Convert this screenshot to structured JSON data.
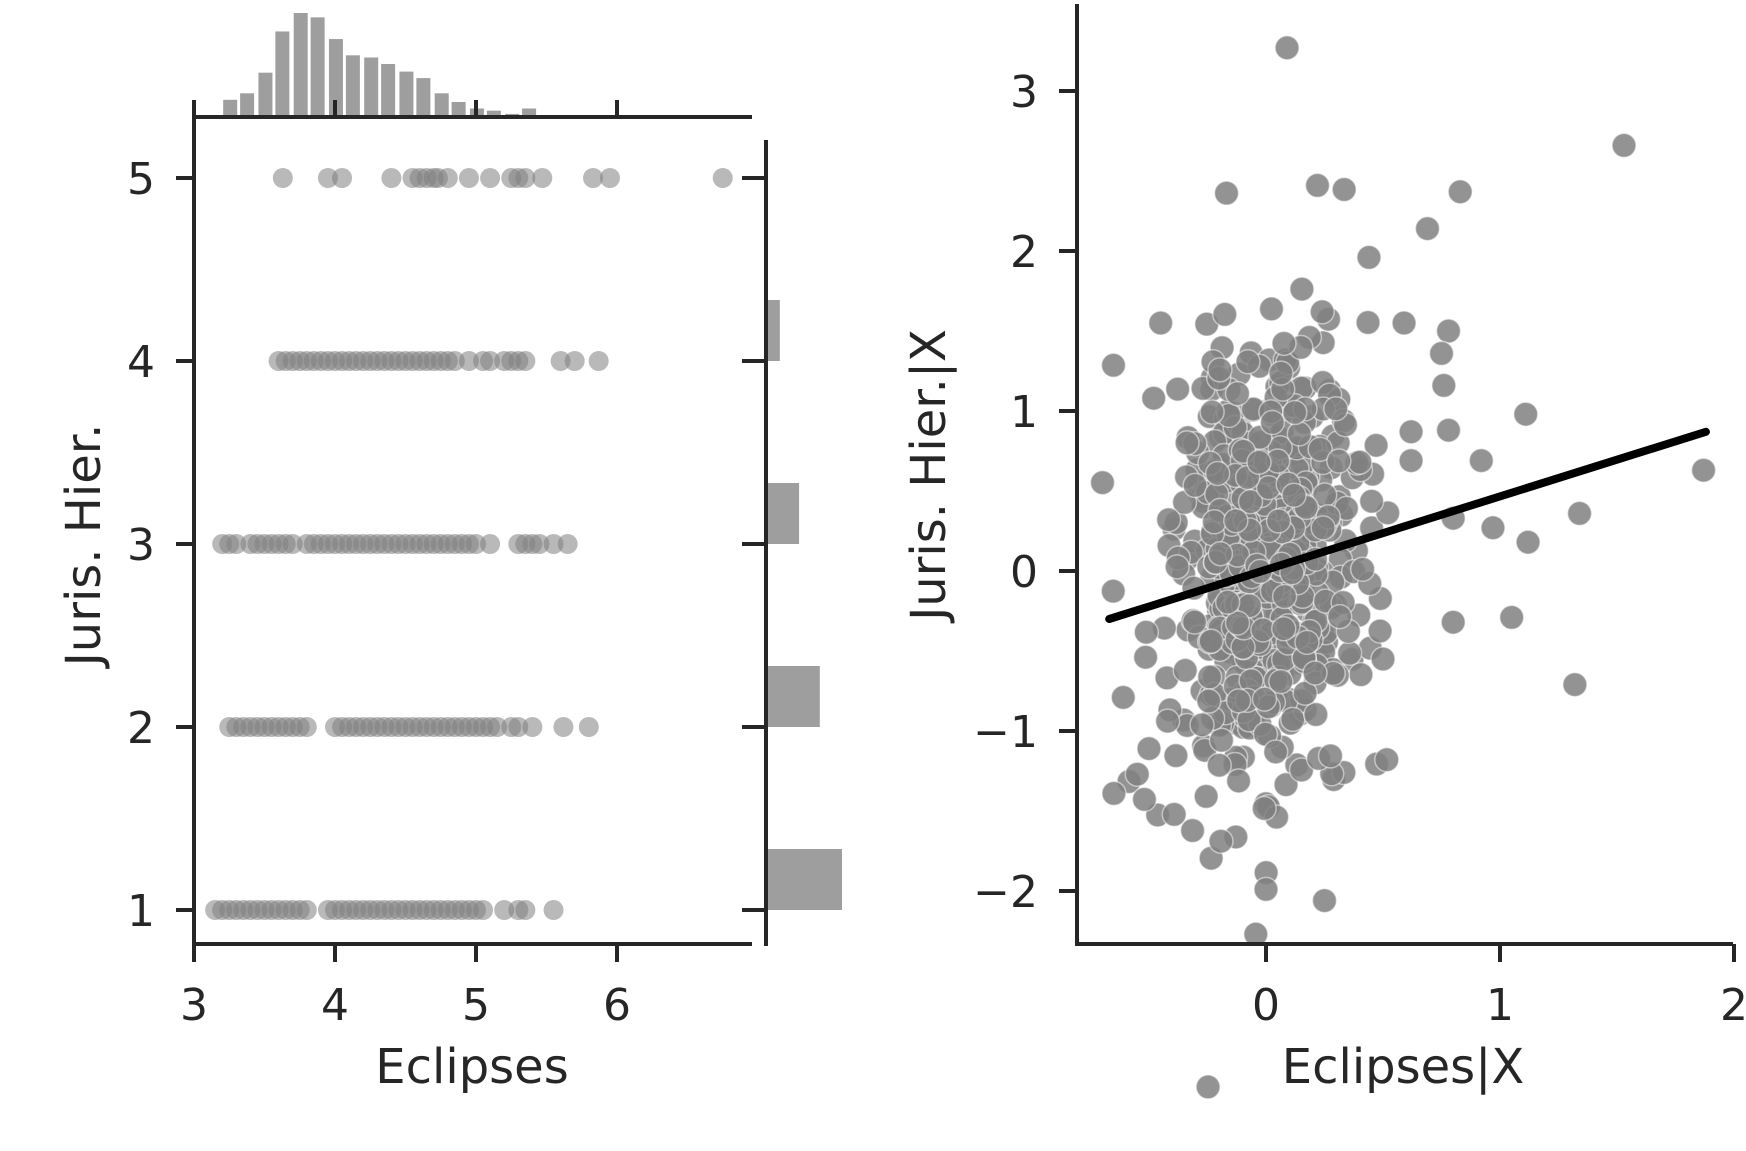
{
  "colors": {
    "axis": "#262626",
    "marker": "#808080",
    "bar": "#9e9e9e",
    "fit_line": "#000000"
  },
  "chart_data": [
    {
      "type": "scatter",
      "panel": "joint-left",
      "xlabel": "Eclipses",
      "ylabel": "Juris. Hier.",
      "xlim": [
        3.0,
        7.0
      ],
      "ylim": [
        0.8,
        5.3
      ],
      "xticks": [
        "3",
        "4",
        "5",
        "6"
      ],
      "yticks": [
        "1",
        "2",
        "3",
        "4",
        "5"
      ],
      "points": [
        {
          "y": 5,
          "x": [
            3.63,
            3.95,
            4.05,
            4.4,
            4.55,
            4.6,
            4.65,
            4.7,
            4.73,
            4.8,
            4.95,
            5.1,
            5.25,
            5.3,
            5.35,
            5.47,
            5.83,
            5.95,
            6.75
          ]
        },
        {
          "y": 4,
          "x": [
            3.6,
            3.65,
            3.7,
            3.75,
            3.8,
            3.85,
            3.9,
            3.95,
            4.0,
            4.05,
            4.1,
            4.15,
            4.2,
            4.25,
            4.3,
            4.35,
            4.4,
            4.45,
            4.5,
            4.55,
            4.6,
            4.65,
            4.7,
            4.75,
            4.8,
            4.85,
            4.95,
            5.05,
            5.1,
            5.2,
            5.25,
            5.3,
            5.35,
            5.6,
            5.7,
            5.87
          ]
        },
        {
          "y": 3,
          "x": [
            3.2,
            3.25,
            3.3,
            3.4,
            3.45,
            3.5,
            3.55,
            3.6,
            3.65,
            3.7,
            3.8,
            3.85,
            3.9,
            3.95,
            4.0,
            4.05,
            4.1,
            4.15,
            4.2,
            4.25,
            4.3,
            4.35,
            4.4,
            4.45,
            4.5,
            4.55,
            4.6,
            4.65,
            4.7,
            4.75,
            4.8,
            4.85,
            4.9,
            4.95,
            5.0,
            5.1,
            5.3,
            5.35,
            5.4,
            5.45,
            5.55,
            5.65
          ]
        },
        {
          "y": 2,
          "x": [
            3.25,
            3.3,
            3.35,
            3.4,
            3.45,
            3.5,
            3.55,
            3.6,
            3.65,
            3.7,
            3.75,
            3.8,
            4.0,
            4.05,
            4.1,
            4.15,
            4.2,
            4.25,
            4.3,
            4.35,
            4.4,
            4.45,
            4.5,
            4.55,
            4.6,
            4.65,
            4.7,
            4.75,
            4.8,
            4.85,
            4.9,
            4.95,
            5.0,
            5.05,
            5.1,
            5.15,
            5.25,
            5.3,
            5.4,
            5.62,
            5.8
          ]
        },
        {
          "y": 1,
          "x": [
            3.15,
            3.2,
            3.25,
            3.3,
            3.35,
            3.4,
            3.45,
            3.5,
            3.55,
            3.6,
            3.65,
            3.7,
            3.75,
            3.8,
            3.95,
            4.0,
            4.05,
            4.1,
            4.15,
            4.2,
            4.25,
            4.3,
            4.35,
            4.4,
            4.45,
            4.5,
            4.55,
            4.6,
            4.65,
            4.7,
            4.75,
            4.8,
            4.85,
            4.9,
            4.95,
            5.0,
            5.05,
            5.2,
            5.3,
            5.35,
            5.55
          ]
        }
      ],
      "marginal_x_hist": {
        "bin_starts": [
          3.2,
          3.32,
          3.45,
          3.57,
          3.7,
          3.82,
          3.95,
          4.07,
          4.2,
          4.32,
          4.45,
          4.57,
          4.7,
          4.82,
          4.95,
          5.07,
          5.2,
          5.32
        ],
        "counts": [
          14,
          20,
          39,
          77,
          94,
          90,
          70,
          55,
          53,
          47,
          40,
          34,
          20,
          12,
          6,
          4,
          1,
          6
        ]
      },
      "marginal_y_hist": {
        "categories": [
          1,
          2,
          3,
          4,
          5
        ],
        "counts": [
          100,
          70,
          42,
          16,
          0
        ]
      }
    },
    {
      "type": "scatter",
      "panel": "added-variable-right",
      "xlabel": "Eclipses|X",
      "ylabel": "Juris. Hier.|X",
      "xlim": [
        -0.8,
        2.0
      ],
      "ylim": [
        -2.35,
        3.55
      ],
      "xticks": [
        "0",
        "1",
        "2"
      ],
      "yticks": [
        "−2",
        "−1",
        "0",
        "1",
        "2",
        "3"
      ],
      "n_cluster_points": 650,
      "cluster_center": [
        0.0,
        0.05
      ],
      "cluster_sd": [
        0.2,
        0.68
      ],
      "outliers": [
        [
          0.09,
          3.27
        ],
        [
          1.53,
          2.66
        ],
        [
          0.83,
          2.37
        ],
        [
          0.22,
          2.41
        ],
        [
          0.44,
          1.96
        ],
        [
          0.69,
          2.14
        ],
        [
          0.78,
          1.5
        ],
        [
          0.59,
          1.55
        ],
        [
          0.75,
          1.36
        ],
        [
          1.11,
          0.98
        ],
        [
          0.92,
          0.69
        ],
        [
          1.87,
          0.63
        ],
        [
          1.34,
          0.36
        ],
        [
          0.97,
          0.27
        ],
        [
          1.12,
          0.18
        ],
        [
          0.8,
          0.33
        ],
        [
          1.05,
          -0.29
        ],
        [
          1.32,
          -0.71
        ],
        [
          0.78,
          0.88
        ],
        [
          0.76,
          1.16
        ],
        [
          0.62,
          0.87
        ],
        [
          0.62,
          0.69
        ],
        [
          -0.65,
          -1.39
        ],
        [
          -0.55,
          -1.27
        ],
        [
          -0.61,
          -0.79
        ],
        [
          -0.5,
          -1.11
        ],
        [
          0.0,
          -1.99
        ],
        [
          0.25,
          -2.06
        ],
        [
          -0.45,
          1.55
        ],
        [
          -0.48,
          1.08
        ],
        [
          0.24,
          1.62
        ],
        [
          0.5,
          -0.55
        ],
        [
          0.8,
          -0.32
        ]
      ],
      "regression_line": {
        "x": [
          -0.67,
          1.88
        ],
        "y": [
          -0.3,
          0.87
        ]
      }
    }
  ]
}
